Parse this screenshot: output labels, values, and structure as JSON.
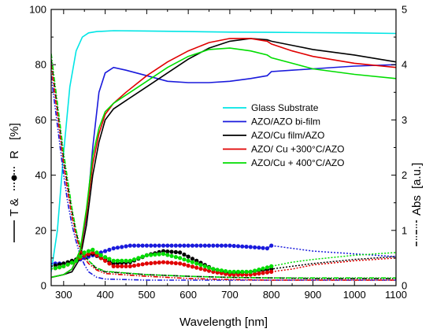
{
  "chart_data": {
    "type": "line",
    "xlabel": "Wavelength [nm]",
    "ylabel_left": {
      "part1": "T &",
      "part2": "R",
      "unit": "[%]"
    },
    "ylabel_right": {
      "part1": "Abs",
      "unit": "[a.u.]"
    },
    "xlim": [
      270,
      1100
    ],
    "ylim_left": [
      0,
      100
    ],
    "ylim_right": [
      0,
      5
    ],
    "x_ticks": [
      "300",
      "400",
      "500",
      "600",
      "700",
      "800",
      "900",
      "1000",
      "1100"
    ],
    "y_left_ticks": [
      "0",
      "20",
      "40",
      "60",
      "80",
      "100"
    ],
    "y_right_ticks": [
      "0",
      "1",
      "2",
      "3",
      "4",
      "5"
    ],
    "legend_position": "center-right",
    "series": [
      {
        "name": "Glass Substrate",
        "color": "#00e5e5",
        "transmittance": {
          "x": [
            270,
            285,
            300,
            315,
            330,
            345,
            360,
            380,
            420,
            500,
            600,
            700,
            800,
            900,
            1000,
            1100
          ],
          "y": [
            5,
            20,
            48,
            72,
            85,
            90,
            91.5,
            92,
            92.3,
            92.2,
            92,
            91.8,
            91.7,
            91.6,
            91.5,
            91.3
          ]
        }
      },
      {
        "name": "AZO/AZO bi-film",
        "color": "#1a1adc",
        "transmittance": {
          "x": [
            270,
            300,
            320,
            340,
            355,
            370,
            385,
            400,
            420,
            450,
            500,
            550,
            600,
            650,
            700,
            750,
            790,
            800,
            850,
            900,
            1000,
            1100
          ],
          "y": [
            3,
            4,
            6,
            12,
            25,
            50,
            70,
            77,
            79,
            78,
            76,
            74,
            73.5,
            73.5,
            74,
            75,
            76,
            77.5,
            78,
            78.5,
            79.5,
            80
          ]
        },
        "reflectance": {
          "x": [
            270,
            300,
            330,
            350,
            370,
            390,
            420,
            460,
            500,
            550,
            600,
            650,
            700,
            750,
            790,
            800,
            850,
            900,
            1000,
            1100
          ],
          "y": [
            8,
            8,
            9,
            10,
            11,
            12,
            13.5,
            14.5,
            14.5,
            14.5,
            14.5,
            14.5,
            14.5,
            14,
            13.5,
            14.5,
            13.5,
            12.5,
            11.5,
            10.5
          ]
        },
        "absorbance": {
          "x": [
            270,
            280,
            290,
            300,
            310,
            320,
            330,
            340,
            350,
            360,
            380,
            400,
            500,
            600,
            700,
            800,
            900,
            1000,
            1100
          ],
          "y": [
            3.8,
            3.2,
            2.6,
            2.0,
            1.5,
            1.1,
            0.8,
            0.55,
            0.38,
            0.25,
            0.15,
            0.12,
            0.1,
            0.1,
            0.1,
            0.1,
            0.1,
            0.1,
            0.1
          ]
        }
      },
      {
        "name": "AZO/Cu film/AZO",
        "color": "#000000",
        "transmittance": {
          "x": [
            270,
            300,
            320,
            340,
            355,
            370,
            385,
            400,
            420,
            450,
            500,
            550,
            600,
            650,
            700,
            750,
            790,
            800,
            850,
            900,
            1000,
            1100
          ],
          "y": [
            3,
            4,
            5,
            10,
            22,
            40,
            52,
            60,
            64,
            67,
            72,
            77,
            82,
            86,
            88.5,
            89.5,
            89,
            88.5,
            87,
            85.5,
            83.5,
            81
          ]
        },
        "reflectance": {
          "x": [
            270,
            300,
            330,
            350,
            370,
            390,
            420,
            460,
            500,
            540,
            580,
            620,
            660,
            700,
            750,
            800,
            850,
            900,
            1000,
            1100
          ],
          "y": [
            7,
            8,
            9.5,
            11,
            11.5,
            10,
            8,
            8.5,
            11,
            12.5,
            12,
            9,
            6,
            4.5,
            5,
            6,
            7,
            8,
            9.5,
            10.5
          ]
        },
        "absorbance": {
          "x": [
            270,
            280,
            290,
            300,
            310,
            320,
            330,
            340,
            350,
            360,
            380,
            400,
            500,
            600,
            700,
            800,
            900,
            1000,
            1100
          ],
          "y": [
            4.1,
            3.5,
            2.9,
            2.3,
            1.8,
            1.35,
            0.95,
            0.7,
            0.55,
            0.45,
            0.3,
            0.25,
            0.2,
            0.17,
            0.15,
            0.14,
            0.13,
            0.13,
            0.13
          ]
        }
      },
      {
        "name": "AZO/ Cu +300°C/AZO",
        "color": "#e00000",
        "transmittance": {
          "x": [
            270,
            300,
            320,
            340,
            355,
            370,
            385,
            400,
            420,
            450,
            500,
            550,
            600,
            650,
            700,
            750,
            790,
            800,
            850,
            900,
            1000,
            1100
          ],
          "y": [
            3,
            4,
            6,
            12,
            26,
            44,
            55,
            62,
            66,
            70,
            76,
            81,
            85,
            88,
            89.5,
            89.5,
            88.5,
            87.5,
            85,
            83,
            80.5,
            79
          ]
        },
        "reflectance": {
          "x": [
            270,
            300,
            330,
            350,
            370,
            390,
            420,
            460,
            500,
            540,
            580,
            620,
            660,
            700,
            750,
            800,
            850,
            900,
            1000,
            1100
          ],
          "y": [
            6,
            7,
            9,
            11,
            12,
            10,
            7,
            7,
            8,
            8.5,
            8,
            6.5,
            5,
            4,
            4,
            5,
            6,
            7.5,
            9,
            10
          ]
        },
        "absorbance": {
          "x": [
            270,
            280,
            290,
            300,
            310,
            320,
            330,
            340,
            350,
            360,
            380,
            400,
            500,
            600,
            700,
            800,
            900,
            1000,
            1100
          ],
          "y": [
            4.0,
            3.4,
            2.8,
            2.2,
            1.7,
            1.25,
            0.9,
            0.65,
            0.5,
            0.4,
            0.28,
            0.22,
            0.17,
            0.13,
            0.11,
            0.1,
            0.1,
            0.1,
            0.1
          ]
        }
      },
      {
        "name": "AZO/Cu + 400°C/AZO",
        "color": "#00dd00",
        "transmittance": {
          "x": [
            270,
            300,
            320,
            340,
            355,
            370,
            385,
            400,
            420,
            450,
            500,
            550,
            600,
            650,
            700,
            750,
            790,
            800,
            850,
            900,
            1000,
            1100
          ],
          "y": [
            3,
            4,
            6,
            13,
            28,
            47,
            57,
            63,
            66,
            69,
            74,
            79,
            83,
            85.5,
            86,
            85,
            83.5,
            82.5,
            80.5,
            78.5,
            76.5,
            75
          ]
        },
        "reflectance": {
          "x": [
            270,
            300,
            330,
            350,
            370,
            390,
            420,
            460,
            500,
            540,
            580,
            620,
            660,
            700,
            750,
            800,
            850,
            900,
            1000,
            1100
          ],
          "y": [
            6,
            7,
            9,
            12,
            13,
            11,
            9,
            9,
            11,
            11.5,
            10,
            8,
            6,
            5,
            5,
            7,
            8.5,
            9.5,
            11,
            12
          ]
        },
        "absorbance": {
          "x": [
            270,
            280,
            290,
            300,
            310,
            320,
            330,
            340,
            350,
            360,
            380,
            400,
            500,
            600,
            700,
            800,
            900,
            1000,
            1100
          ],
          "y": [
            4.2,
            3.6,
            3.0,
            2.4,
            1.9,
            1.4,
            1.0,
            0.72,
            0.55,
            0.45,
            0.32,
            0.26,
            0.2,
            0.17,
            0.15,
            0.14,
            0.14,
            0.14,
            0.14
          ]
        }
      }
    ]
  }
}
